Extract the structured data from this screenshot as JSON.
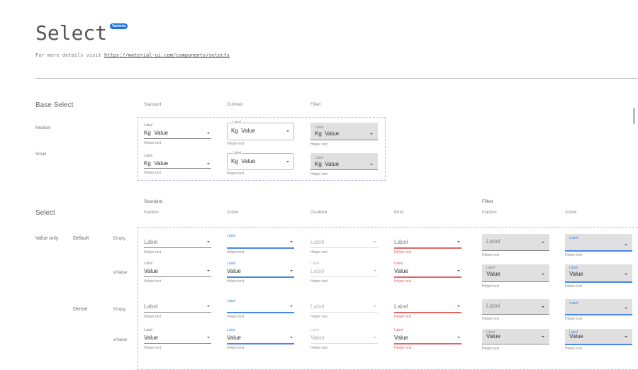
{
  "header": {
    "title": "Select",
    "badge": "Variants",
    "subtitle": "For more details visit ",
    "link": "https://material-ui.com/components/selects"
  },
  "base": {
    "title": "Base Select",
    "cols": [
      "Standard",
      "Outlined",
      "Filled"
    ],
    "rows": [
      "Medium",
      "Small"
    ],
    "field": {
      "label": "Label",
      "prefix": "Kg",
      "value": "Value",
      "helper": "Helper text"
    }
  },
  "select": {
    "title": "Select",
    "group_standard": "Standard",
    "group_filled": "Filled",
    "cols": [
      "Inactive",
      "Active",
      "Disabled",
      "Error",
      "Inactive",
      "Active"
    ],
    "section": "Value only",
    "sizes": [
      "Default",
      "Dense"
    ],
    "states": [
      "Empty",
      "wValue"
    ],
    "label": "Label",
    "value": "Value",
    "helper": "Helper text"
  },
  "colors": {
    "accent": "#4a86e8",
    "error": "#e06666",
    "filled_bg": "#e0e0e0",
    "badge": "#1a73e8"
  }
}
